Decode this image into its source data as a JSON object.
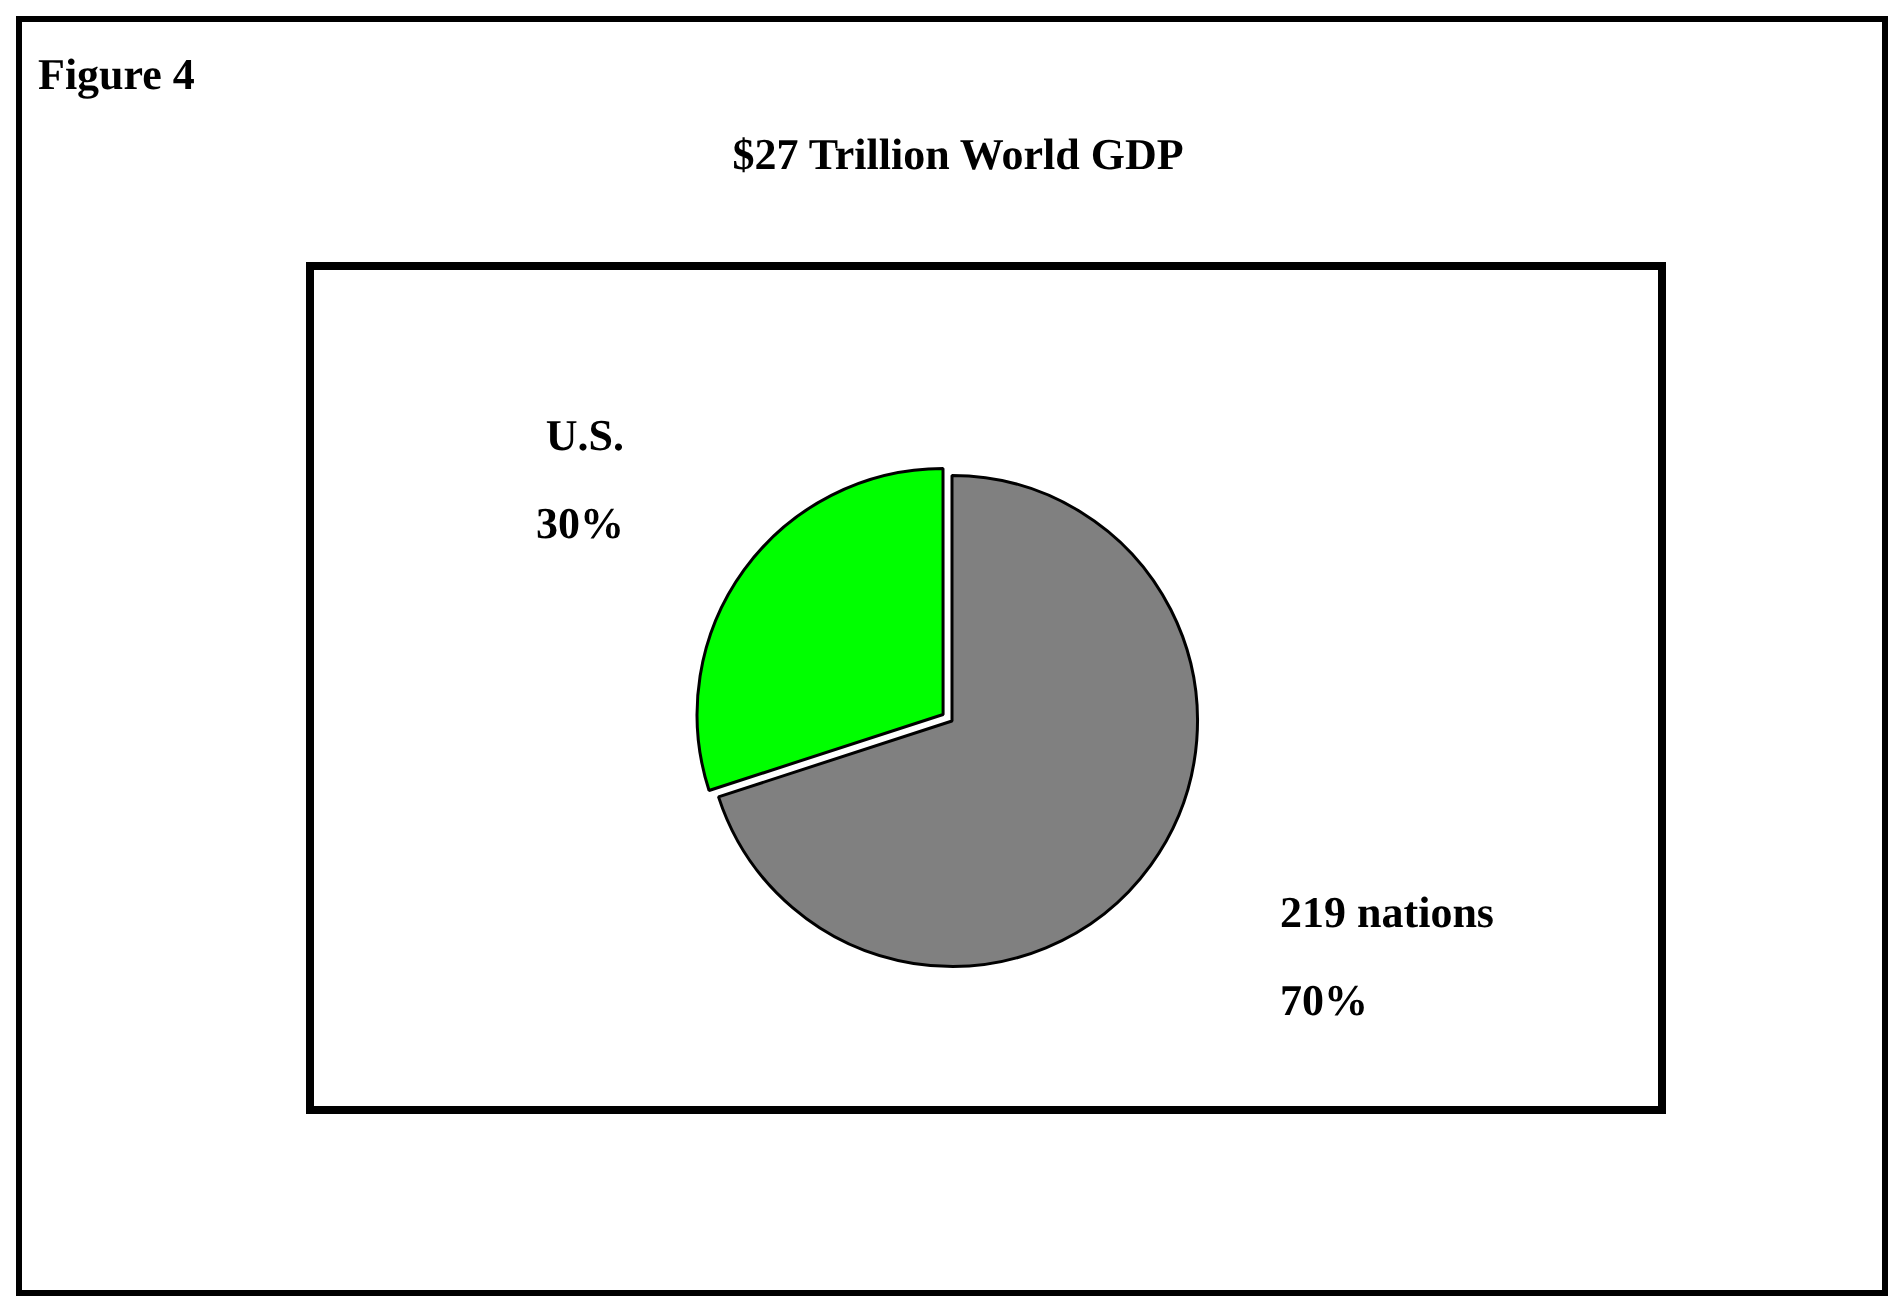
{
  "chart_data": {
    "type": "pie",
    "title": "$27 Trillion World GDP",
    "annotations": [
      "Figure 4"
    ],
    "categories": [
      "U.S.",
      "219 nations"
    ],
    "values": [
      30,
      70
    ],
    "colors": [
      "#00ff00",
      "#808080"
    ],
    "value_labels": [
      "30%",
      "70%"
    ],
    "legend": false
  }
}
